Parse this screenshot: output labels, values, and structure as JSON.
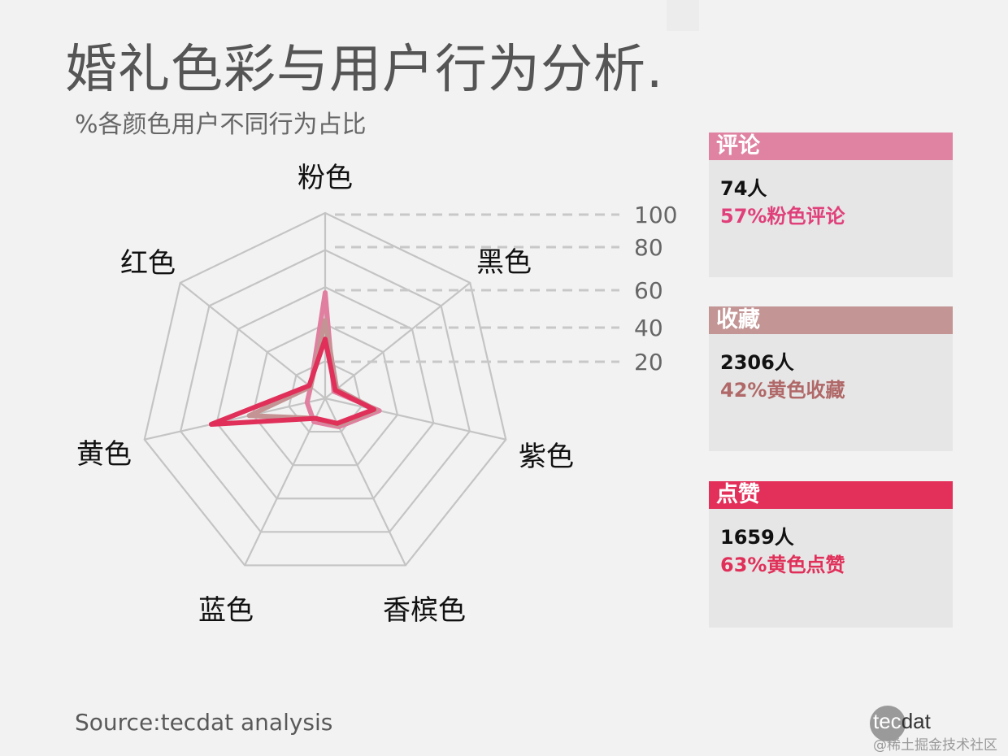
{
  "title": "婚礼色彩与用户行为分析.",
  "subtitle": "%各颜色用户不同行为占比",
  "chart_data": {
    "type": "radar",
    "axes": [
      "粉色",
      "黑色",
      "紫色",
      "香槟色",
      "蓝色",
      "黄色",
      "红色"
    ],
    "ticks": [
      20,
      40,
      60,
      80,
      100
    ],
    "range": [
      0,
      100
    ],
    "series": [
      {
        "name": "评论",
        "color": "#e07fa0",
        "values": [
          57,
          6,
          30,
          17,
          14,
          10,
          10
        ]
      },
      {
        "name": "收藏",
        "color": "#c49494",
        "values": [
          42,
          8,
          28,
          16,
          12,
          42,
          10
        ]
      },
      {
        "name": "点赞",
        "color": "#e0305a",
        "values": [
          32,
          7,
          27,
          15,
          12,
          63,
          11
        ]
      }
    ]
  },
  "cards": [
    {
      "title": "评论",
      "count": "74人",
      "stat": "57%粉色评论",
      "header_color": "#e083a3",
      "stat_color": "#e0407a"
    },
    {
      "title": "收藏",
      "count": "2306人",
      "stat": "42%黄色收藏",
      "header_color": "#c39594",
      "stat_color": "#b06868"
    },
    {
      "title": "点赞",
      "count": "1659人",
      "stat": "63%黄色点赞",
      "header_color": "#e3305a",
      "stat_color": "#e0305a"
    }
  ],
  "source": "Source:tecdat analysis",
  "logo": {
    "part1": "tec",
    "part2": "dat"
  },
  "watermark": "@稀土掘金技术社区"
}
